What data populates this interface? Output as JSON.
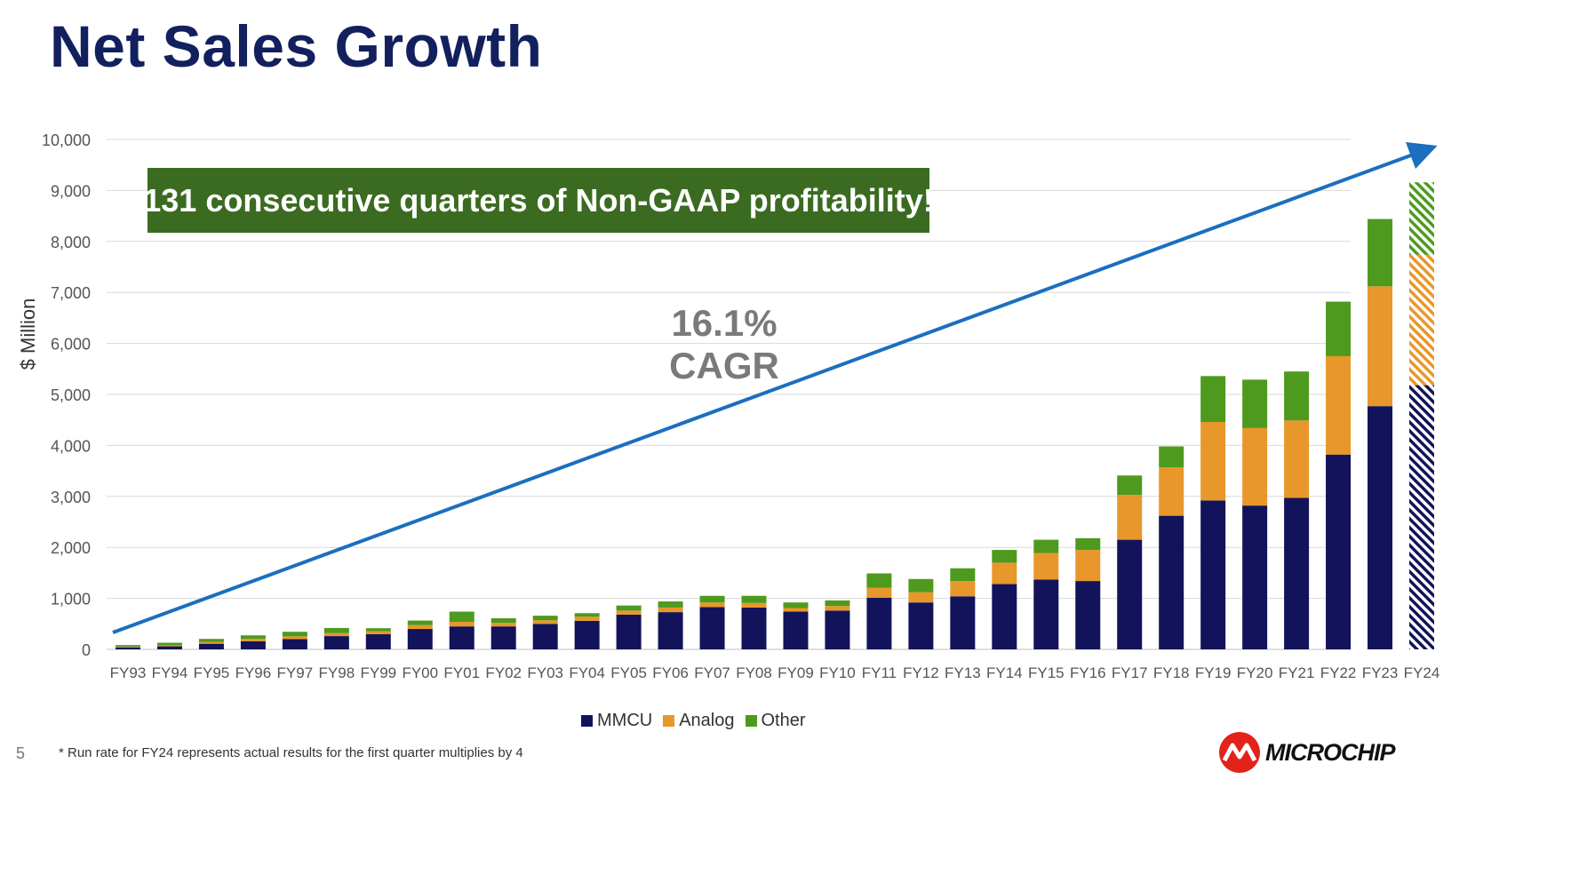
{
  "title": "Net Sales Growth",
  "callout": "131 consecutive quarters of Non-GAAP profitability!",
  "cagr_label": "16.1% CAGR",
  "page_number": "5",
  "footnote": "* Run rate for FY24 represents actual results for the first quarter multiplies by 4",
  "logo_text": "MICROCHIP",
  "colors": {
    "title": "#12205e",
    "mmcu": "#12135a",
    "analog": "#e8972a",
    "other": "#4e9a1e",
    "trend": "#1a6fbf",
    "callout_bg": "#3a6b21",
    "cagr_text": "#7a7a7a",
    "logo_red": "#e2231a"
  },
  "chart_data": {
    "type": "bar",
    "stacked": true,
    "ylabel": "$ Million",
    "ylim": [
      0,
      10000
    ],
    "yticks": [
      "0",
      "1,000",
      "2,000",
      "3,000",
      "4,000",
      "5,000",
      "6,000",
      "7,000",
      "8,000",
      "9,000",
      "10,000"
    ],
    "ytick_values": [
      0,
      1000,
      2000,
      3000,
      4000,
      5000,
      6000,
      7000,
      8000,
      9000,
      10000
    ],
    "grid": true,
    "legend_position": "bottom",
    "categories": [
      "FY93",
      "FY94",
      "FY95",
      "FY96",
      "FY97",
      "FY98",
      "FY99",
      "FY00",
      "FY01",
      "FY02",
      "FY03",
      "FY04",
      "FY05",
      "FY06",
      "FY07",
      "FY08",
      "FY09",
      "FY10",
      "FY11",
      "FY12",
      "FY13",
      "FY14",
      "FY15",
      "FY16",
      "FY17",
      "FY18",
      "FY19",
      "FY20",
      "FY21",
      "FY22",
      "FY23",
      "FY24"
    ],
    "series": [
      {
        "name": "MMCU",
        "values": [
          40,
          60,
          110,
          160,
          200,
          260,
          300,
          400,
          450,
          450,
          500,
          560,
          680,
          730,
          830,
          820,
          740,
          760,
          1010,
          920,
          1040,
          1280,
          1370,
          1340,
          2150,
          2620,
          2920,
          2820,
          2970,
          3820,
          4770,
          5180
        ]
      },
      {
        "name": "Analog",
        "values": [
          15,
          20,
          35,
          45,
          55,
          60,
          55,
          75,
          90,
          70,
          70,
          80,
          80,
          90,
          90,
          90,
          70,
          90,
          200,
          200,
          300,
          420,
          520,
          610,
          880,
          950,
          1540,
          1520,
          1520,
          1930,
          2350,
          2560
        ]
      },
      {
        "name": "Other",
        "values": [
          30,
          50,
          60,
          70,
          90,
          100,
          60,
          90,
          200,
          90,
          90,
          70,
          100,
          120,
          130,
          140,
          110,
          110,
          280,
          260,
          250,
          250,
          260,
          230,
          380,
          410,
          900,
          950,
          960,
          1070,
          1320,
          1420
        ]
      }
    ],
    "projected": [
      "FY24"
    ],
    "trend": {
      "label": "16.1% CAGR",
      "from": {
        "x": "FY93",
        "y": 330
      },
      "to": {
        "x": "FY24",
        "y": 9830
      }
    }
  }
}
